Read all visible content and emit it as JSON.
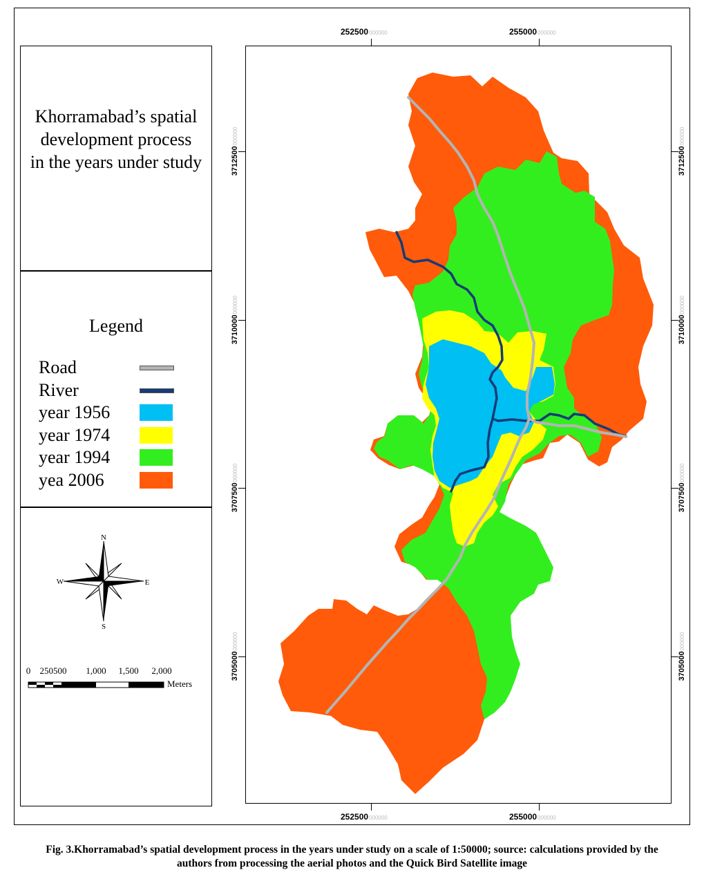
{
  "title": "Khorramabad’s spatial\ndevelopment process\n in the years under study",
  "legend": {
    "heading": "Legend",
    "items": [
      {
        "label": "Road",
        "kind": "line",
        "color": "#b4b4b4"
      },
      {
        "label": "River",
        "kind": "line",
        "color": "#143c78"
      },
      {
        "label": "year 1956",
        "kind": "fill",
        "color": "#00bff3"
      },
      {
        "label": "year 1974",
        "kind": "fill",
        "color": "#ffff00"
      },
      {
        "label": "year 1994",
        "kind": "fill",
        "color": "#33ee1e"
      },
      {
        "label": "yea 2006",
        "kind": "fill",
        "color": "#ff5b0a"
      }
    ]
  },
  "compass": {
    "n": "N",
    "s": "S",
    "e": "E",
    "w": "W"
  },
  "scale_bar": {
    "ticks": [
      "0",
      "250500",
      "1,000",
      "1,500",
      "2,000"
    ],
    "unit": "Meters"
  },
  "grid": {
    "easting": [
      {
        "value": "252500",
        "suffix": "000000"
      },
      {
        "value": "255000",
        "suffix": "000000"
      }
    ],
    "northing": [
      {
        "value": "3712500",
        "suffix": "000000"
      },
      {
        "value": "3710000",
        "suffix": "000000"
      },
      {
        "value": "3707500",
        "suffix": "000000"
      },
      {
        "value": "3705000",
        "suffix": "000000"
      }
    ]
  },
  "colors": {
    "y2006": "#ff5b0a",
    "y1994": "#33ee1e",
    "y1974": "#ffff00",
    "y1956": "#00bff3",
    "road": "#b4b4b4",
    "river": "#143c78"
  },
  "caption": {
    "line1": "Fig. 3.Khorramabad’s spatial development process in the years under study on a scale of 1:50000; source: calculations provided by the",
    "line2": "authors from processing the aerial photos and the Quick Bird Satellite image"
  }
}
